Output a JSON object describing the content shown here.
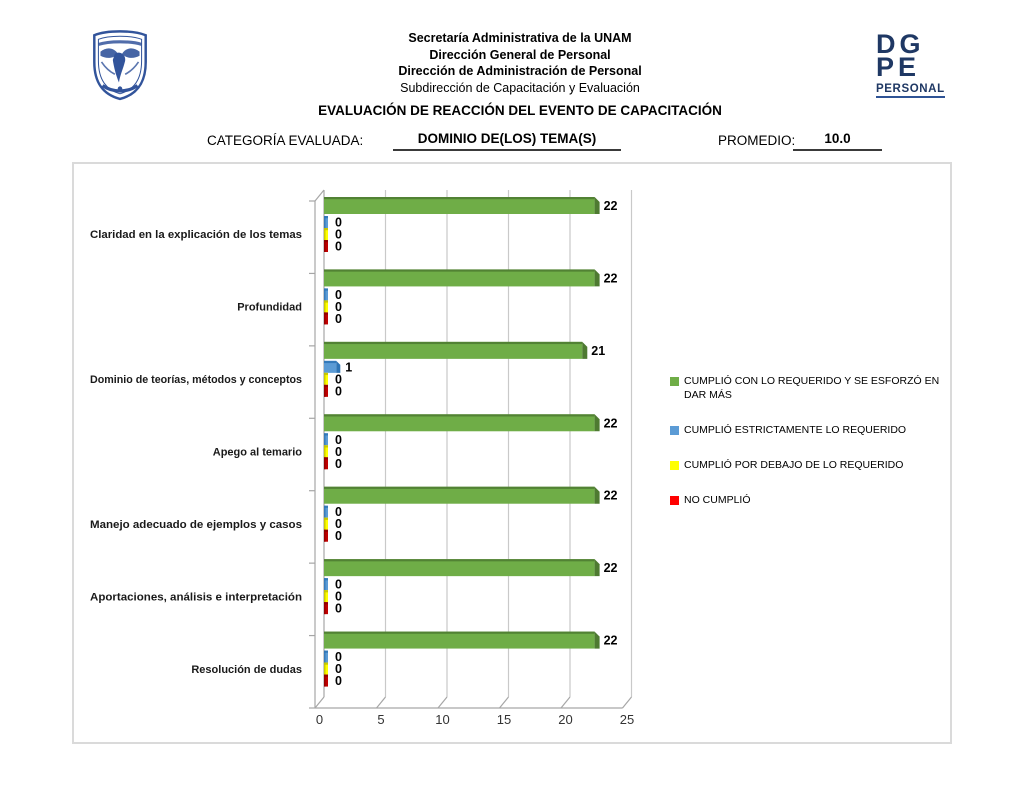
{
  "header": {
    "unam_logo_alt": "Escudo UNAM",
    "org_line1": "Secretaría Administrativa de la UNAM",
    "org_line2": "Dirección General de Personal",
    "org_line3": "Dirección de Administración de Personal",
    "org_line4": "Subdirección de Capacitación y Evaluación",
    "dgpe_logo": {
      "line1": "DG",
      "line2": "PE",
      "line3": "PERSONAL"
    }
  },
  "title": "EVALUACIÓN DE REACCIÓN DEL EVENTO DE CAPACITACIÓN",
  "category_row": {
    "label": "CATEGORÍA EVALUADA:",
    "value": "DOMINIO DE(LOS) TEMA(S)",
    "promedio_label": "PROMEDIO:",
    "promedio_value": "10.0"
  },
  "chart_data": {
    "type": "bar",
    "orientation": "horizontal",
    "style": "3d",
    "grid": true,
    "legend_position": "right",
    "data_labels": true,
    "xlim": [
      0,
      25
    ],
    "x_ticks": [
      0,
      5,
      10,
      15,
      20,
      25
    ],
    "categories": [
      "Claridad en la explicación de los temas",
      "Profundidad",
      "Dominio de teorías, métodos y conceptos",
      "Apego al temario",
      "Manejo adecuado de ejemplos y casos",
      "Aportaciones, análisis e interpretación",
      "Resolución de dudas"
    ],
    "series": [
      {
        "name": "CUMPLIÓ CON LO REQUERIDO Y SE ESFORZÓ EN DAR MÁS",
        "color": "#6FAD47",
        "edge": "#4E7A31",
        "legend_color": "#6FAD47",
        "values": [
          22,
          22,
          21,
          22,
          22,
          22,
          22
        ]
      },
      {
        "name": "CUMPLIÓ ESTRICTAMENTE LO REQUERIDO",
        "color": "#5B9BD5",
        "edge": "#2E74B5",
        "legend_color": "#5B9BD5",
        "values": [
          0,
          0,
          1,
          0,
          0,
          0,
          0
        ]
      },
      {
        "name": "CUMPLIÓ POR DEBAJO DE LO REQUERIDO",
        "color": "#FFFF00",
        "edge": "#BFBF00",
        "legend_color": "#FFFF00",
        "values": [
          0,
          0,
          0,
          0,
          0,
          0,
          0
        ]
      },
      {
        "name": "NO CUMPLIÓ",
        "color": "#C00000",
        "edge": "#8B0000",
        "legend_color": "#FF0000",
        "values": [
          0,
          0,
          0,
          0,
          0,
          0,
          0
        ]
      }
    ]
  }
}
